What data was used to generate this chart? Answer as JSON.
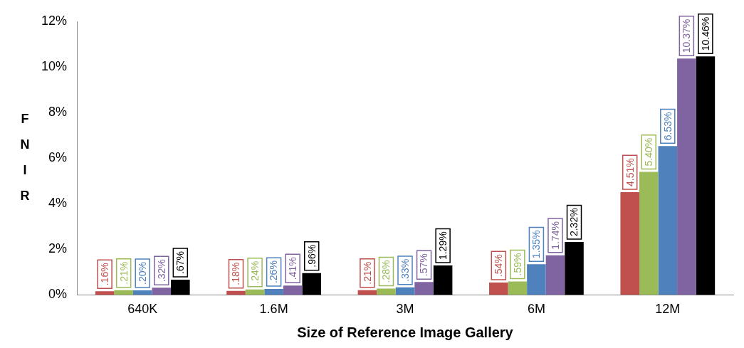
{
  "chart_data": {
    "type": "bar",
    "xlabel": "Size of Reference Image Gallery",
    "ylabel": "FNIR",
    "categories": [
      "640K",
      "1.6M",
      "3M",
      "6M",
      "12M"
    ],
    "series": [
      {
        "color": "#c0504d",
        "values": [
          0.16,
          0.18,
          0.21,
          0.54,
          4.51
        ],
        "value_labels": [
          ".16%",
          ".18%",
          ".21%",
          ".54%",
          "4.51%"
        ]
      },
      {
        "color": "#9bbb59",
        "values": [
          0.21,
          0.24,
          0.28,
          0.59,
          5.4
        ],
        "value_labels": [
          ".21%",
          ".24%",
          ".28%",
          ".59%",
          "5.40%"
        ]
      },
      {
        "color": "#4f81bd",
        "values": [
          0.2,
          0.26,
          0.33,
          1.35,
          6.53
        ],
        "value_labels": [
          ".20%",
          ".26%",
          ".33%",
          "1.35%",
          "6.53%"
        ]
      },
      {
        "color": "#8064a2",
        "values": [
          0.32,
          0.41,
          0.57,
          1.74,
          10.37
        ],
        "value_labels": [
          ".32%",
          ".41%",
          ".57%",
          "1.74%",
          "10.37%"
        ]
      },
      {
        "color": "#000000",
        "values": [
          0.67,
          0.96,
          1.29,
          2.32,
          10.46
        ],
        "value_labels": [
          ".67%",
          ".96%",
          "1.29%",
          "2.32%",
          "10.46%"
        ]
      }
    ],
    "ylim": [
      0,
      12
    ],
    "yticks": [
      {
        "value": 0,
        "label": "0%"
      },
      {
        "value": 2,
        "label": "2%"
      },
      {
        "value": 4,
        "label": "4%"
      },
      {
        "value": 6,
        "label": "6%"
      },
      {
        "value": 8,
        "label": "8%"
      },
      {
        "value": 10,
        "label": "10%"
      },
      {
        "value": 12,
        "label": "12%"
      }
    ],
    "grid": false,
    "legend": false
  }
}
